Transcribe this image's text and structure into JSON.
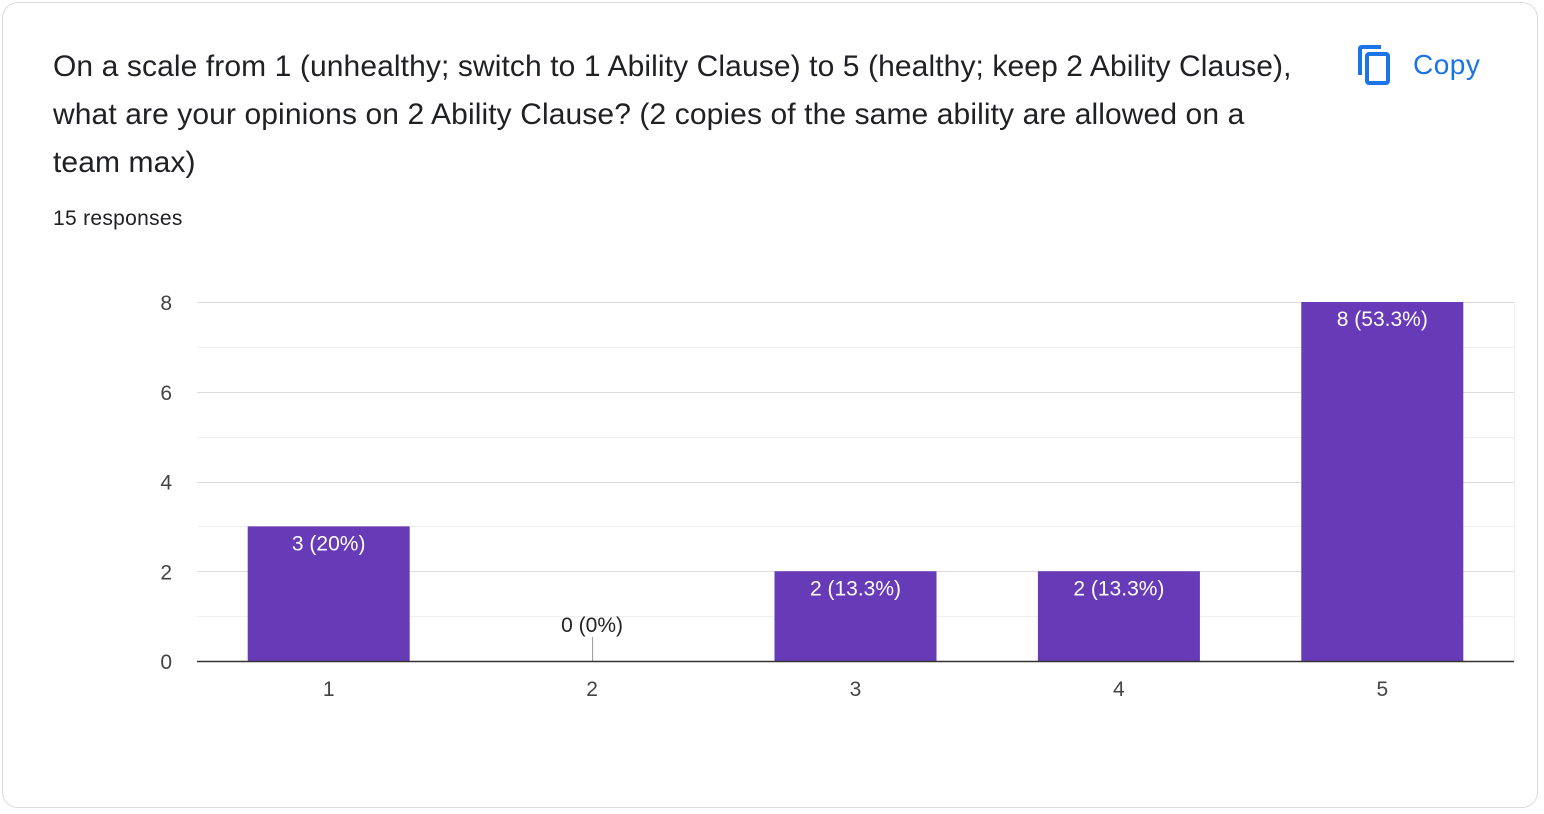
{
  "card": {
    "question": "On a scale from 1 (unhealthy; switch to 1 Ability Clause) to 5 (healthy; keep 2 Ability Clause), what are your opinions on 2 Ability Clause? (2 copies of the same ability are allowed on a team max)",
    "responses": "15 responses",
    "copy_label": "Copy",
    "copy_icon": "content-copy-icon"
  },
  "colors": {
    "bar": "#673ab7",
    "accent": "#1a73e8",
    "text": "#202124",
    "grid": "#e6e6e6"
  },
  "chart_data": {
    "type": "bar",
    "categories": [
      "1",
      "2",
      "3",
      "4",
      "5"
    ],
    "values": [
      3,
      0,
      2,
      2,
      8
    ],
    "data_labels": [
      "3 (20%)",
      "0 (0%)",
      "2 (13.3%)",
      "2 (13.3%)",
      "8 (53.3%)"
    ],
    "yticks": [
      "0",
      "2",
      "4",
      "6",
      "8"
    ],
    "ylim": [
      0,
      8
    ],
    "title": "",
    "xlabel": "",
    "ylabel": "",
    "grid": true,
    "legend": "none"
  }
}
